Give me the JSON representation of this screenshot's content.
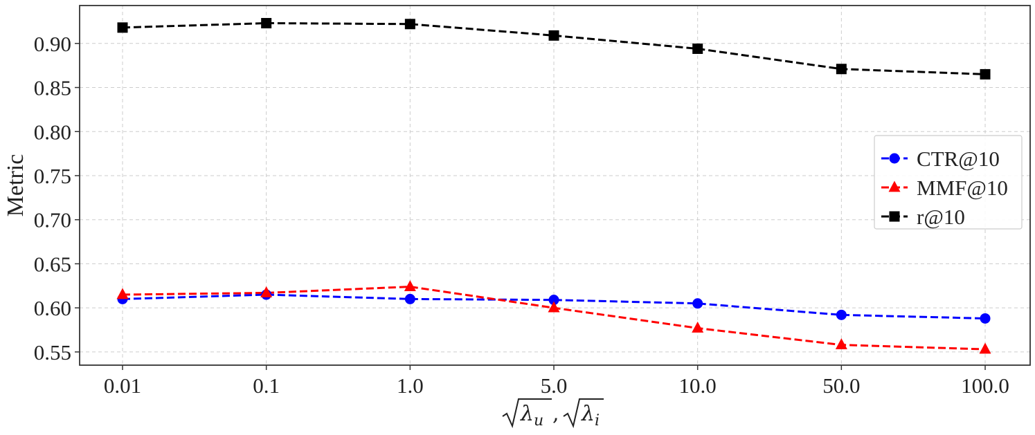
{
  "chart_data": {
    "type": "line",
    "title": "",
    "ylabel": "Metric",
    "xlabel": {
      "display": "√λu, √λi",
      "parts": {
        "radical": "√",
        "symbol": "λ",
        "sub1": "u",
        "separator": ", ",
        "sub2": "i"
      }
    },
    "categories": [
      "0.01",
      "0.1",
      "1.0",
      "5.0",
      "10.0",
      "50.0",
      "100.0"
    ],
    "ylim": [
      0.535,
      0.943
    ],
    "yticks": [
      "0.55",
      "0.60",
      "0.65",
      "0.70",
      "0.75",
      "0.80",
      "0.85",
      "0.90"
    ],
    "grid": true,
    "legend_position": "center-right",
    "series": [
      {
        "name": "CTR@10",
        "color": "#0000ff",
        "marker": "circle",
        "linestyle": "dashed",
        "values": [
          0.61,
          0.615,
          0.61,
          0.609,
          0.605,
          0.592,
          0.588
        ]
      },
      {
        "name": "MMF@10",
        "color": "#ff0000",
        "marker": "triangle",
        "linestyle": "dashed",
        "values": [
          0.615,
          0.617,
          0.624,
          0.6,
          0.577,
          0.558,
          0.553
        ]
      },
      {
        "name": "r@10",
        "color": "#000000",
        "marker": "square",
        "linestyle": "dashed",
        "values": [
          0.918,
          0.923,
          0.922,
          0.909,
          0.894,
          0.871,
          0.865
        ]
      }
    ]
  }
}
